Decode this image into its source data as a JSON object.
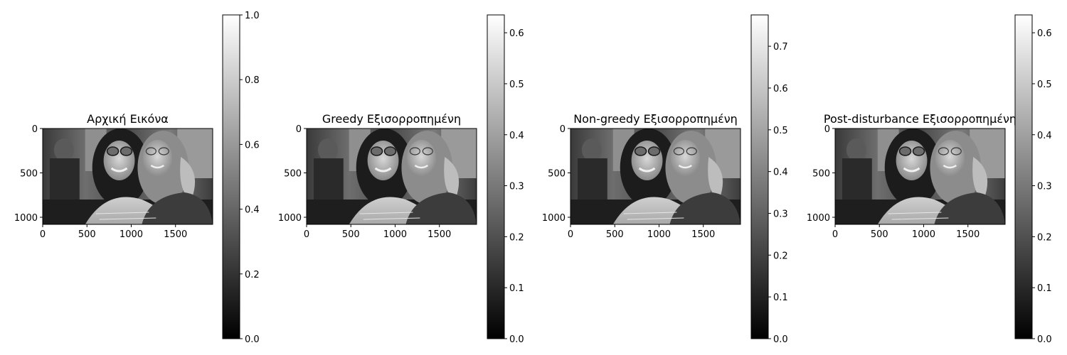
{
  "chart_data": [
    {
      "type": "image",
      "title": "Αρχική Εικόνα",
      "image_extent": {
        "width": 1920,
        "height": 1080
      },
      "x_ticks": [
        0,
        500,
        1000,
        1500
      ],
      "y_ticks": [
        0,
        500,
        1000
      ],
      "colormap": "gray",
      "colorbar": {
        "min": 0.0,
        "max": 1.0,
        "ticks": [
          "0.0",
          "0.2",
          "0.4",
          "0.6",
          "0.8",
          "1.0"
        ],
        "tick_values": [
          0.0,
          0.2,
          0.4,
          0.6,
          0.8,
          1.0
        ]
      }
    },
    {
      "type": "image",
      "title": "Greedy Εξισορροπημένη",
      "image_extent": {
        "width": 1920,
        "height": 1080
      },
      "x_ticks": [
        0,
        500,
        1000,
        1500
      ],
      "y_ticks": [
        0,
        500,
        1000
      ],
      "colormap": "gray",
      "colorbar": {
        "min": 0.0,
        "max": 0.635,
        "ticks": [
          "0.0",
          "0.1",
          "0.2",
          "0.3",
          "0.4",
          "0.5",
          "0.6"
        ],
        "tick_values": [
          0.0,
          0.1,
          0.2,
          0.3,
          0.4,
          0.5,
          0.6
        ]
      }
    },
    {
      "type": "image",
      "title": "Non-greedy Εξισορροπημένη",
      "image_extent": {
        "width": 1920,
        "height": 1080
      },
      "x_ticks": [
        0,
        500,
        1000,
        1500
      ],
      "y_ticks": [
        0,
        500,
        1000
      ],
      "colormap": "gray",
      "colorbar": {
        "min": 0.0,
        "max": 0.775,
        "ticks": [
          "0.0",
          "0.1",
          "0.2",
          "0.3",
          "0.4",
          "0.5",
          "0.6",
          "0.7"
        ],
        "tick_values": [
          0.0,
          0.1,
          0.2,
          0.3,
          0.4,
          0.5,
          0.6,
          0.7
        ]
      }
    },
    {
      "type": "image",
      "title": "Post-disturbance Εξισορροπημένη",
      "image_extent": {
        "width": 1920,
        "height": 1080
      },
      "x_ticks": [
        0,
        500,
        1000,
        1500
      ],
      "y_ticks": [
        0,
        500,
        1000
      ],
      "colormap": "gray",
      "colorbar": {
        "min": 0.0,
        "max": 0.635,
        "ticks": [
          "0.0",
          "0.1",
          "0.2",
          "0.3",
          "0.4",
          "0.5",
          "0.6"
        ],
        "tick_values": [
          0.0,
          0.1,
          0.2,
          0.3,
          0.4,
          0.5,
          0.6
        ]
      }
    }
  ]
}
